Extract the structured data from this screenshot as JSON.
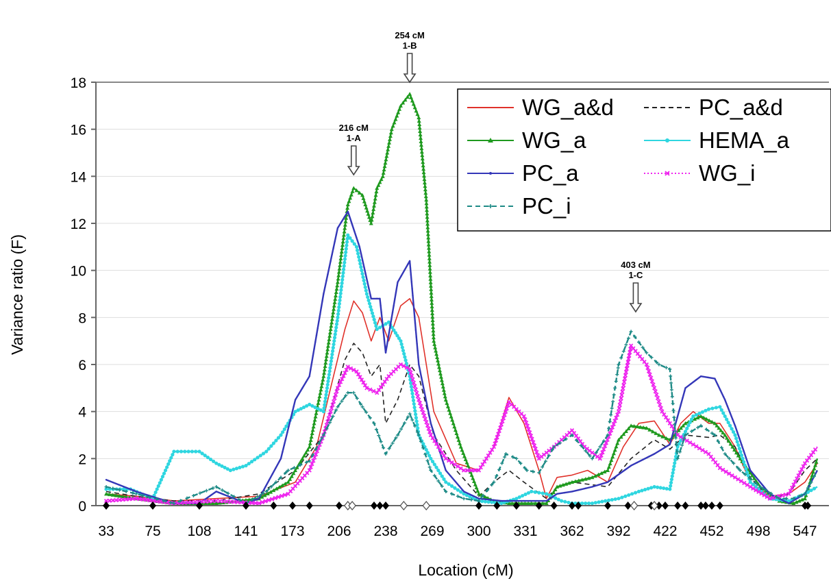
{
  "chart_data": {
    "type": "line",
    "xlabel": "Location (cM)",
    "ylabel": "Variance ratio (F)",
    "ylim": [
      0,
      18
    ],
    "xlim": [
      33,
      560
    ],
    "yticks": [
      0,
      2,
      4,
      6,
      8,
      10,
      12,
      14,
      16,
      18
    ],
    "xtick_labels": [
      "33",
      "75",
      "108",
      "141",
      "173",
      "206",
      "238",
      "269",
      "300",
      "331",
      "362",
      "392",
      "422",
      "452",
      "498",
      "547"
    ],
    "grid": "horizontal",
    "legend": "top-right",
    "colors": {
      "WG_a&d": "#e0312a",
      "PC_a&d": "#222222",
      "WG_a": "#1f9a1f",
      "HEMA_a": "#2fd6e0",
      "PC_a": "#3437b8",
      "WG_i": "#ee22ee",
      "PC_i": "#1d8a86"
    },
    "annotations": [
      {
        "x": 216,
        "line1": "216 cM",
        "line2": "1-A"
      },
      {
        "x": 254,
        "line1": "254 cM",
        "line2": "1-B"
      },
      {
        "x": 403,
        "line1": "403 cM",
        "line2": "1-C"
      }
    ],
    "markers": {
      "filled": [
        33,
        75,
        108,
        141,
        160,
        173,
        185,
        206,
        230,
        234,
        238,
        300,
        312,
        325,
        340,
        350,
        362,
        366,
        385,
        398,
        413,
        418,
        422,
        430,
        435,
        445,
        448,
        452,
        460,
        547,
        550
      ],
      "open": [
        212,
        215,
        250,
        265,
        402,
        415
      ]
    },
    "series": [
      {
        "name": "WG_a&d",
        "style": "solid",
        "x": [
          33,
          60,
          90,
          120,
          150,
          175,
          190,
          200,
          210,
          216,
          222,
          228,
          234,
          240,
          248,
          254,
          260,
          270,
          285,
          300,
          310,
          320,
          330,
          340,
          345,
          352,
          362,
          372,
          385,
          395,
          405,
          415,
          425,
          432,
          440,
          450,
          460,
          475,
          490,
          510,
          530,
          547,
          560
        ],
        "y": [
          0.5,
          0.4,
          0.2,
          0.3,
          0.4,
          1.0,
          2.5,
          5.0,
          7.5,
          8.7,
          8.2,
          7.0,
          8.0,
          7.0,
          8.5,
          8.8,
          8.0,
          4.0,
          1.8,
          1.5,
          2.5,
          4.6,
          3.5,
          1.5,
          0.3,
          1.2,
          1.3,
          1.5,
          1.0,
          2.5,
          3.5,
          3.6,
          2.6,
          3.5,
          4.0,
          3.5,
          3.5,
          2.5,
          1.0,
          0.4,
          0.5,
          1.0,
          1.8
        ]
      },
      {
        "name": "PC_a&d",
        "style": "dashed",
        "x": [
          33,
          60,
          90,
          120,
          150,
          175,
          195,
          210,
          216,
          222,
          228,
          234,
          238,
          246,
          254,
          260,
          270,
          285,
          300,
          310,
          320,
          330,
          345,
          352,
          362,
          385,
          400,
          415,
          425,
          435,
          450,
          460,
          475,
          490,
          510,
          530,
          547,
          560
        ],
        "y": [
          0.6,
          0.4,
          0.2,
          0.2,
          0.5,
          1.5,
          3.0,
          6.2,
          6.9,
          6.5,
          5.5,
          6.0,
          3.5,
          4.5,
          6.0,
          5.5,
          3.0,
          1.5,
          0.4,
          1.0,
          1.5,
          1.0,
          0.3,
          0.8,
          1.0,
          0.8,
          2.0,
          2.8,
          2.4,
          3.0,
          2.9,
          3.0,
          2.5,
          1.2,
          0.3,
          0.5,
          1.5,
          2.0
        ]
      },
      {
        "name": "WG_a",
        "style": "solid-marker",
        "marker": "triangle",
        "x": [
          33,
          60,
          90,
          120,
          150,
          170,
          185,
          195,
          205,
          212,
          216,
          222,
          228,
          232,
          236,
          242,
          248,
          254,
          260,
          265,
          270,
          278,
          288,
          300,
          310,
          320,
          335,
          345,
          352,
          362,
          375,
          385,
          392,
          400,
          410,
          418,
          425,
          435,
          445,
          455,
          465,
          480,
          500,
          520,
          535,
          547,
          560
        ],
        "y": [
          0.5,
          0.3,
          0.1,
          0.1,
          0.3,
          1.0,
          2.5,
          5.5,
          9.5,
          12.8,
          13.5,
          13.2,
          12.0,
          13.5,
          14.0,
          16.0,
          17.0,
          17.5,
          16.5,
          13.0,
          7.0,
          4.5,
          2.5,
          0.5,
          0.2,
          0.1,
          0.1,
          0.1,
          0.8,
          1.0,
          1.2,
          1.5,
          2.8,
          3.4,
          3.3,
          3.0,
          2.8,
          3.5,
          3.8,
          3.5,
          3.0,
          2.0,
          0.8,
          0.2,
          0.1,
          0.3,
          2.0
        ]
      },
      {
        "name": "HEMA_a",
        "style": "solid-marker",
        "marker": "dot",
        "x": [
          33,
          55,
          75,
          90,
          108,
          120,
          130,
          141,
          155,
          165,
          175,
          185,
          195,
          205,
          212,
          218,
          225,
          232,
          240,
          248,
          254,
          260,
          268,
          278,
          290,
          300,
          315,
          325,
          335,
          345,
          355,
          362,
          375,
          392,
          405,
          415,
          425,
          430,
          440,
          450,
          460,
          475,
          490,
          510,
          530,
          547,
          560
        ],
        "y": [
          0.7,
          0.7,
          0.3,
          2.3,
          2.3,
          1.8,
          1.5,
          1.7,
          2.3,
          3.0,
          4.0,
          4.3,
          4.0,
          8.0,
          11.5,
          11.0,
          9.0,
          7.5,
          7.8,
          7.0,
          5.5,
          3.0,
          2.0,
          1.0,
          0.5,
          0.2,
          0.1,
          0.3,
          0.6,
          0.5,
          0.2,
          0.1,
          0.1,
          0.3,
          0.6,
          0.8,
          0.7,
          2.5,
          3.8,
          4.1,
          4.2,
          3.0,
          1.0,
          0.3,
          0.2,
          0.5,
          0.8
        ]
      },
      {
        "name": "PC_a",
        "style": "solid-marker",
        "marker": "small",
        "x": [
          33,
          60,
          90,
          108,
          120,
          141,
          150,
          165,
          175,
          185,
          195,
          205,
          212,
          220,
          228,
          234,
          238,
          246,
          254,
          260,
          268,
          278,
          290,
          300,
          315,
          330,
          345,
          352,
          362,
          375,
          385,
          400,
          415,
          425,
          435,
          445,
          455,
          465,
          475,
          490,
          510,
          530,
          547,
          560
        ],
        "y": [
          1.1,
          0.6,
          0.1,
          0.1,
          0.6,
          0.1,
          0.3,
          2.0,
          4.5,
          5.5,
          9.0,
          11.8,
          12.5,
          11.0,
          8.8,
          8.8,
          6.5,
          9.5,
          10.4,
          6.0,
          3.5,
          1.5,
          0.6,
          0.3,
          0.2,
          0.2,
          0.2,
          0.5,
          0.6,
          0.8,
          1.0,
          1.7,
          2.2,
          2.6,
          5.0,
          5.5,
          5.4,
          4.5,
          3.4,
          1.5,
          0.5,
          0.1,
          0.5,
          1.5
        ]
      },
      {
        "name": "WG_i",
        "style": "dotted-marker",
        "marker": "x",
        "x": [
          33,
          60,
          90,
          120,
          150,
          170,
          185,
          195,
          205,
          212,
          218,
          225,
          232,
          240,
          248,
          254,
          260,
          268,
          278,
          290,
          300,
          310,
          320,
          330,
          340,
          350,
          362,
          370,
          380,
          392,
          400,
          410,
          420,
          430,
          440,
          450,
          460,
          475,
          490,
          510,
          530,
          547,
          560
        ],
        "y": [
          0.2,
          0.3,
          0.1,
          0.2,
          0.1,
          0.5,
          1.5,
          3.0,
          5.0,
          5.9,
          5.7,
          5.0,
          4.8,
          5.5,
          6.0,
          5.8,
          4.5,
          3.0,
          2.0,
          1.5,
          1.5,
          2.5,
          4.4,
          3.8,
          2.0,
          2.5,
          3.2,
          2.5,
          2.0,
          4.0,
          6.8,
          6.0,
          4.0,
          3.0,
          2.6,
          2.2,
          1.6,
          1.2,
          0.8,
          0.3,
          0.5,
          1.8,
          2.5
        ]
      },
      {
        "name": "PC_i",
        "style": "dashed-marker",
        "marker": "plus",
        "x": [
          33,
          60,
          90,
          120,
          141,
          155,
          170,
          185,
          195,
          205,
          212,
          216,
          222,
          230,
          238,
          246,
          254,
          260,
          268,
          278,
          290,
          300,
          310,
          318,
          325,
          332,
          340,
          350,
          362,
          375,
          385,
          392,
          400,
          410,
          418,
          425,
          430,
          435,
          445,
          455,
          465,
          480,
          500,
          520,
          535,
          547,
          560
        ],
        "y": [
          0.8,
          0.5,
          0.1,
          0.8,
          0.1,
          0.6,
          1.5,
          1.9,
          3.0,
          4.2,
          4.8,
          4.8,
          4.2,
          3.5,
          2.2,
          3.0,
          3.9,
          3.0,
          1.5,
          0.6,
          0.3,
          0.2,
          1.0,
          2.2,
          2.0,
          1.5,
          1.4,
          2.5,
          3.0,
          2.0,
          3.0,
          6.0,
          7.4,
          6.5,
          6.0,
          5.8,
          2.0,
          3.0,
          3.4,
          3.0,
          2.2,
          1.5,
          0.8,
          0.3,
          0.3,
          0.5,
          1.5
        ]
      }
    ]
  }
}
